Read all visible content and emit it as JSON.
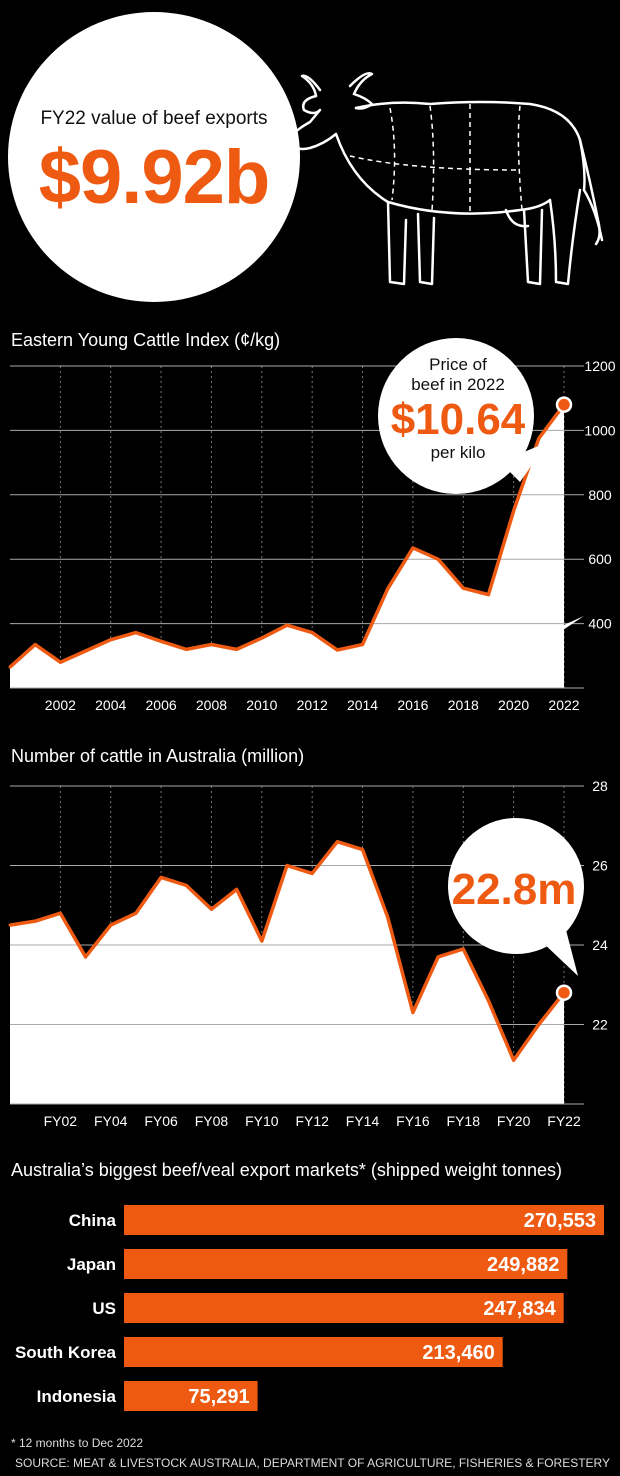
{
  "hero": {
    "subtitle": "FY22 value of beef exports",
    "value": "$9.92b"
  },
  "colors": {
    "accent": "#ee5a12",
    "area": "#ffffff",
    "background": "#000000"
  },
  "icons": {
    "hero": "cow-icon"
  },
  "chart_data": [
    {
      "type": "area",
      "title": "Eastern Young Cattle Index (¢/kg)",
      "x": [
        2000,
        2001,
        2002,
        2003,
        2004,
        2005,
        2006,
        2007,
        2008,
        2009,
        2010,
        2011,
        2012,
        2013,
        2014,
        2015,
        2016,
        2017,
        2018,
        2019,
        2020,
        2021,
        2022
      ],
      "values": [
        265,
        335,
        280,
        315,
        350,
        372,
        345,
        320,
        335,
        320,
        355,
        395,
        372,
        318,
        335,
        508,
        635,
        600,
        510,
        490,
        750,
        975,
        1080
      ],
      "x_ticks": [
        "2002",
        "2004",
        "2006",
        "2008",
        "2010",
        "2012",
        "2014",
        "2016",
        "2018",
        "2020",
        "2022"
      ],
      "x_tick_values": [
        2002,
        2004,
        2006,
        2008,
        2010,
        2012,
        2014,
        2016,
        2018,
        2020,
        2022
      ],
      "y_ticks": [
        "400",
        "600",
        "800",
        "1000",
        "1200"
      ],
      "y_tick_values": [
        400,
        600,
        800,
        1000,
        1200
      ],
      "ylim": [
        200,
        1200
      ],
      "xlim": [
        2000,
        2022
      ],
      "callout": {
        "line1": "Price of",
        "line2": "beef in 2022",
        "value": "$10.64",
        "line3": "per kilo"
      }
    },
    {
      "type": "area",
      "title": "Number of cattle in Australia (million)",
      "x": [
        2000,
        2001,
        2002,
        2003,
        2004,
        2005,
        2006,
        2007,
        2008,
        2009,
        2010,
        2011,
        2012,
        2013,
        2014,
        2015,
        2016,
        2017,
        2018,
        2019,
        2020,
        2021,
        2022
      ],
      "values": [
        24.5,
        24.6,
        24.8,
        23.7,
        24.5,
        24.8,
        25.7,
        25.5,
        24.9,
        25.4,
        24.1,
        26.0,
        25.8,
        26.6,
        26.4,
        24.7,
        22.3,
        23.7,
        23.9,
        22.6,
        21.1,
        22.0,
        22.8
      ],
      "x_ticks": [
        "FY02",
        "FY04",
        "FY06",
        "FY08",
        "FY10",
        "FY12",
        "FY14",
        "FY16",
        "FY18",
        "FY20",
        "FY22"
      ],
      "x_tick_values": [
        2002,
        2004,
        2006,
        2008,
        2010,
        2012,
        2014,
        2016,
        2018,
        2020,
        2022
      ],
      "y_ticks": [
        "22",
        "24",
        "26",
        "28"
      ],
      "y_tick_values": [
        22,
        24,
        26,
        28
      ],
      "ylim": [
        20,
        28
      ],
      "xlim": [
        2000,
        2022
      ],
      "callout": {
        "value": "22.8m"
      }
    },
    {
      "type": "bar",
      "title": "Australia’s biggest beef/veal export markets* (shipped weight tonnes)",
      "categories": [
        "China",
        "Japan",
        "US",
        "South Korea",
        "Indonesia"
      ],
      "values": [
        270553,
        249882,
        247834,
        213460,
        75291
      ],
      "value_labels": [
        "270,553",
        "249,882",
        "247,834",
        "213,460",
        "75,291"
      ]
    }
  ],
  "footer": {
    "footnote": "* 12 months to Dec 2022",
    "source": "SOURCE: MEAT & LIVESTOCK AUSTRALIA, DEPARTMENT OF AGRICULTURE, FISHERIES & FORESTERY"
  }
}
